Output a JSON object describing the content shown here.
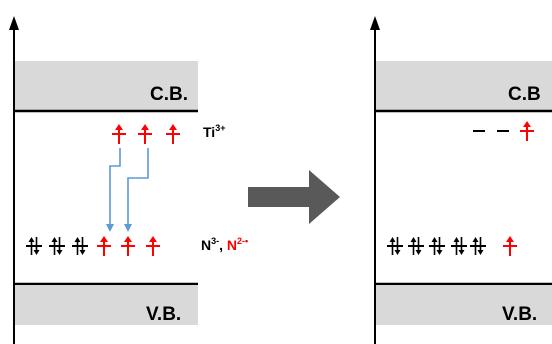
{
  "left_panel": {
    "conduction_band_label": "C.B.",
    "valence_band_label": "V.B.",
    "ti_level_label": "Ti",
    "ti_level_charge": "3+",
    "n_level_label_a": "N",
    "n_level_charge_a": "3-",
    "n_level_sep": ", ",
    "n_level_label_b": "N",
    "n_level_charge_b": "2-•"
  },
  "right_panel": {
    "conduction_band_label": "C.B",
    "valence_band_label": "V.B."
  },
  "colors": {
    "band_fill": "#d9d9d9",
    "transfer_arrow": "#5b9bd5",
    "unpaired_spin": "#ff0000",
    "paired_spin": "#000000",
    "process_arrow": "#595959"
  }
}
